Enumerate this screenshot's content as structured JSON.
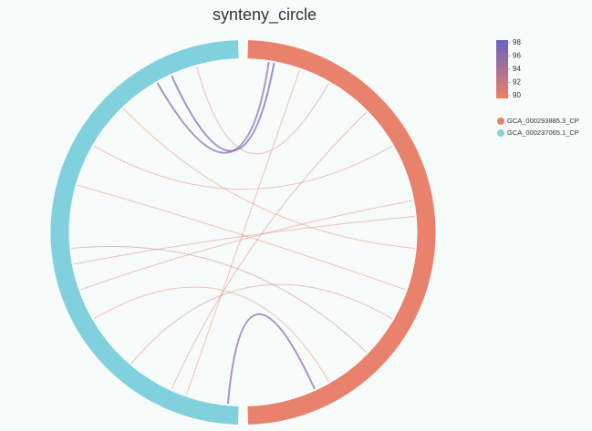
{
  "chart_data": {
    "type": "chord",
    "title": "synteny_circle",
    "series": [
      {
        "name": "GCA_000293885.3_CP",
        "color": "#e9826d"
      },
      {
        "name": "GCA_000237065.1_CP",
        "color": "#80d0dd"
      }
    ],
    "colorscale": {
      "min": 90,
      "max": 98,
      "ticks": [
        90,
        92,
        94,
        96,
        98
      ],
      "colors": [
        "#ec7f66",
        "#6b62c4"
      ]
    },
    "links": {
      "source": [
        0.05,
        0.04,
        0.16,
        0.44,
        0.47,
        0.87,
        0.84,
        0.33,
        0.67,
        0.61,
        0.25,
        0.53,
        0.75,
        0.1
      ],
      "target": [
        0.87,
        0.84,
        0.92,
        0.39,
        0.44,
        0.02,
        0.33,
        0.67,
        0.22,
        0.59,
        0.13,
        0.76,
        0.47,
        0.1
      ],
      "identity": [
        97,
        96,
        91,
        90,
        91,
        96,
        90,
        91,
        92,
        90,
        91,
        90,
        93,
        90
      ]
    }
  }
}
